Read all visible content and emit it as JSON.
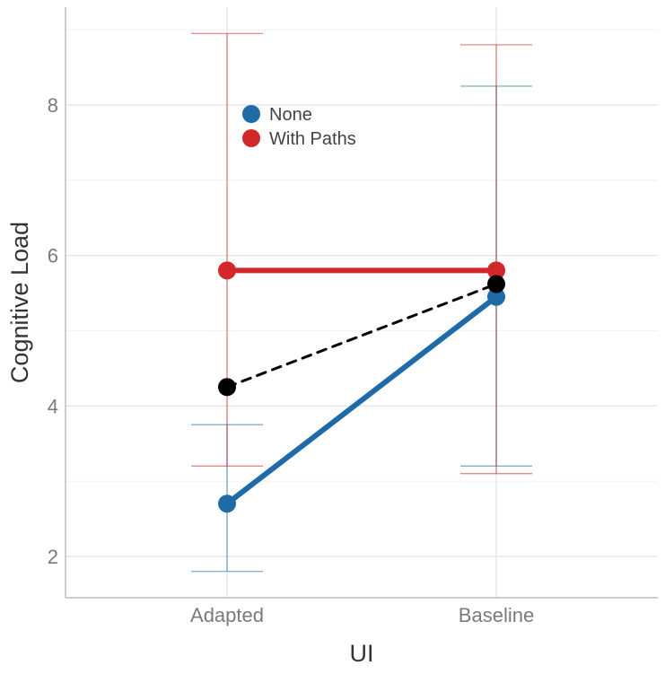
{
  "chart_data": {
    "type": "line",
    "title": "",
    "xlabel": "UI",
    "ylabel": "Cognitive Load",
    "categories": [
      "Adapted",
      "Baseline"
    ],
    "yticks": [
      2,
      4,
      6,
      8
    ],
    "ylim": [
      1.45,
      9.3
    ],
    "grid": true,
    "legend_position": "top-left-inside",
    "series": [
      {
        "name": "None",
        "color": "#1f6ba8",
        "line_style": "solid",
        "values": [
          2.7,
          5.45
        ],
        "error_low": [
          1.8,
          3.2
        ],
        "error_high": [
          3.75,
          8.25
        ]
      },
      {
        "name": "With Paths",
        "color": "#d3282b",
        "line_style": "solid",
        "values": [
          5.8,
          5.8
        ],
        "error_low": [
          3.2,
          3.1
        ],
        "error_high": [
          8.95,
          8.8
        ]
      },
      {
        "color": "#000000",
        "line_style": "dashed",
        "values": [
          4.25,
          5.62
        ]
      }
    ]
  }
}
